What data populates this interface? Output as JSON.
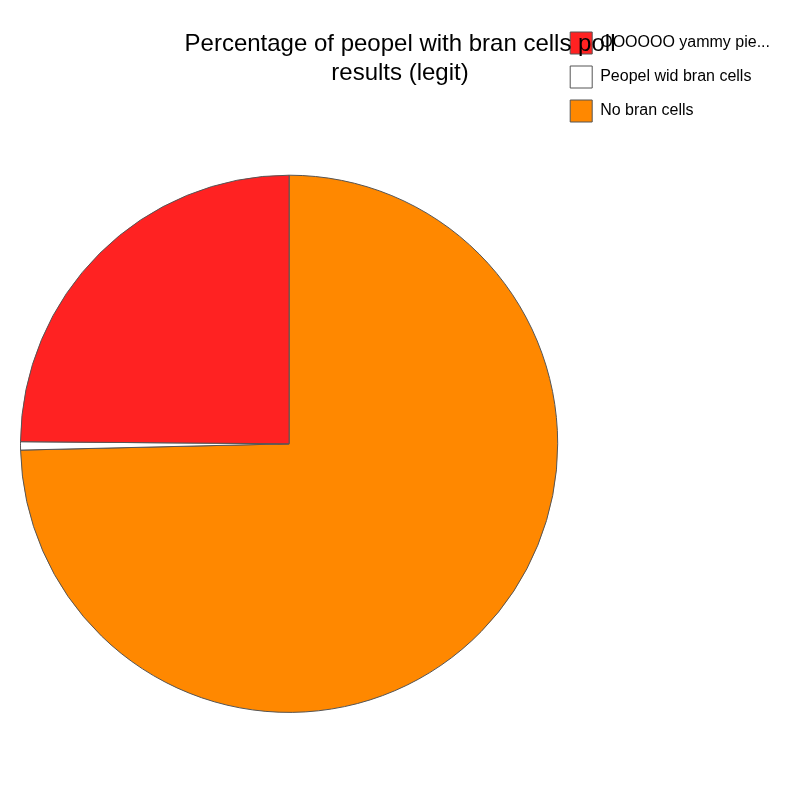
{
  "chart_data": {
    "type": "pie",
    "title": "Percentage of peopel with bran cells poll\nresults (legit)",
    "categories": [
      "No bran cells",
      "Peopel wid bran cells",
      "OOOOOO yammy pie..."
    ],
    "values": [
      75,
      0.5,
      25
    ],
    "colors": [
      "#ff8800",
      "#ffffff",
      "#ff2222"
    ],
    "legend": "upper right"
  }
}
